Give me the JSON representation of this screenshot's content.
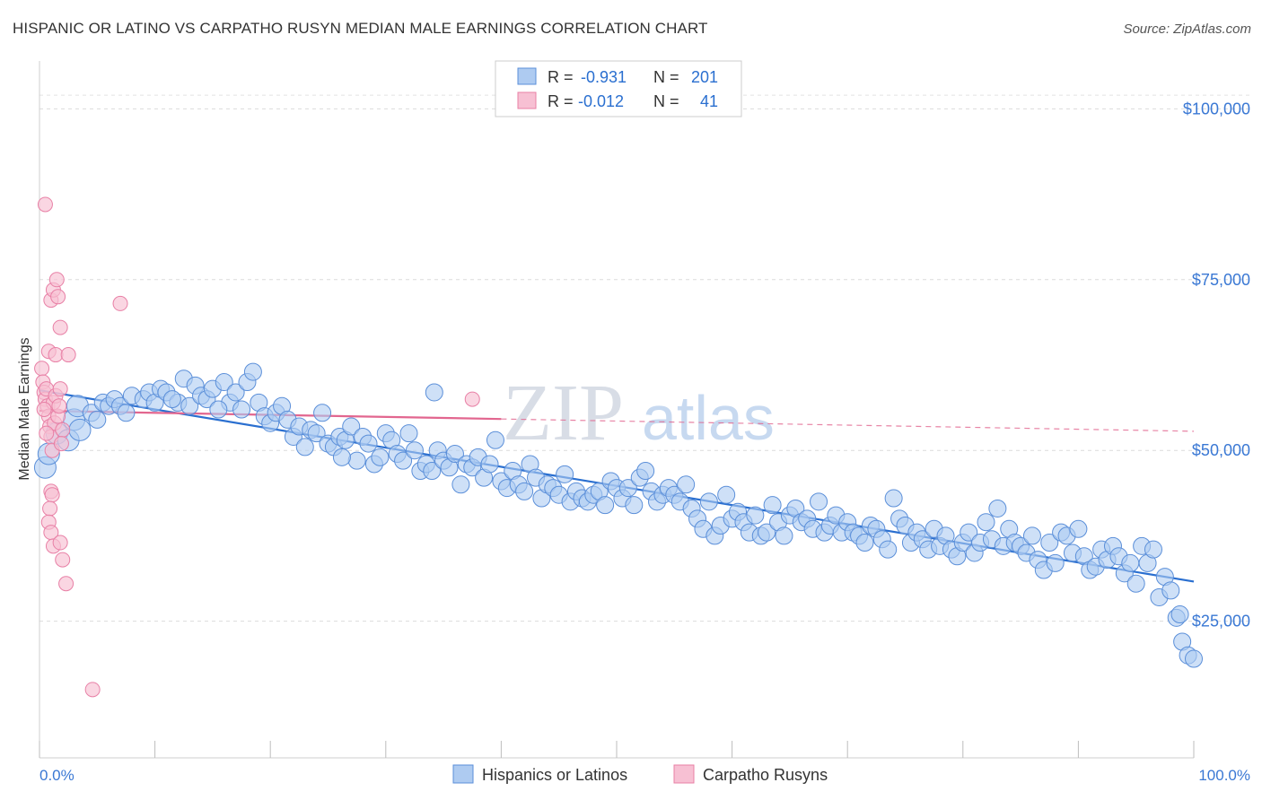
{
  "header": {
    "title": "HISPANIC OR LATINO VS CARPATHO RUSYN MEDIAN MALE EARNINGS CORRELATION CHART",
    "source": "Source: ZipAtlas.com"
  },
  "watermark": {
    "zip": "ZIP",
    "atlas": "atlas"
  },
  "colors": {
    "blue": "#5b8fd9",
    "blue_fill": "#aecbf1",
    "blue_line": "#2a6fd0",
    "pink": "#e880a6",
    "pink_fill": "#f7c0d3",
    "pink_line": "#e2668f",
    "axis_text": "#3a78d4"
  },
  "chart_data": {
    "type": "scatter",
    "title": "HISPANIC OR LATINO VS CARPATHO RUSYN MEDIAN MALE EARNINGS CORRELATION CHART",
    "xlabel": "",
    "ylabel": "Median Male Earnings",
    "xlim": [
      0,
      100
    ],
    "ylim": [
      5000,
      107000
    ],
    "x_tick_labels": [
      "0.0%",
      "100.0%"
    ],
    "y_ticks": [
      {
        "value": 25000,
        "label": "$25,000"
      },
      {
        "value": 50000,
        "label": "$50,000"
      },
      {
        "value": 75000,
        "label": "$75,000"
      },
      {
        "value": 100000,
        "label": "$100,000"
      }
    ],
    "legend": {
      "position": "top-center",
      "entries": [
        {
          "r_label": "R =",
          "r_value": "-0.931",
          "n_label": "N =",
          "n_value": "201"
        },
        {
          "r_label": "R =",
          "r_value": "-0.012",
          "n_label": "N =",
          "n_value": "41"
        }
      ]
    },
    "bottom_legend": [
      "Hispanics or Latinos",
      "Carpatho Rusyns"
    ],
    "series": [
      {
        "name": "Hispanics or Latinos",
        "r": -0.931,
        "n": 201,
        "trend": {
          "x": [
            0,
            100
          ],
          "y": [
            58800,
            30800
          ]
        },
        "points": [
          [
            0.5,
            47.5
          ],
          [
            0.8,
            49.5
          ],
          [
            1.5,
            52.5
          ],
          [
            2.5,
            51.5
          ],
          [
            3.0,
            54.5
          ],
          [
            3.3,
            56.5
          ],
          [
            4.5,
            55.5
          ],
          [
            5.0,
            54.5
          ],
          [
            5.5,
            57.0
          ],
          [
            6.0,
            56.5
          ],
          [
            6.5,
            57.5
          ],
          [
            7.0,
            56.5
          ],
          [
            8.0,
            58.0
          ],
          [
            9.0,
            57.5
          ],
          [
            9.5,
            58.5
          ],
          [
            10.0,
            57.0
          ],
          [
            10.5,
            59.0
          ],
          [
            11.0,
            58.5
          ],
          [
            12.0,
            57.0
          ],
          [
            12.5,
            60.5
          ],
          [
            13.0,
            56.5
          ],
          [
            13.5,
            59.5
          ],
          [
            14.0,
            58.0
          ],
          [
            14.5,
            57.5
          ],
          [
            15.0,
            59.0
          ],
          [
            16.0,
            60.0
          ],
          [
            16.5,
            57.0
          ],
          [
            17.0,
            58.5
          ],
          [
            17.5,
            56.0
          ],
          [
            18.0,
            60.0
          ],
          [
            18.5,
            61.5
          ],
          [
            19.0,
            57.0
          ],
          [
            19.5,
            55.0
          ],
          [
            20.0,
            54.0
          ],
          [
            20.5,
            55.5
          ],
          [
            21.0,
            56.5
          ],
          [
            21.5,
            54.5
          ],
          [
            22.0,
            52.0
          ],
          [
            22.5,
            53.5
          ],
          [
            23.0,
            50.5
          ],
          [
            23.5,
            53.0
          ],
          [
            24.0,
            52.5
          ],
          [
            24.5,
            55.5
          ],
          [
            25.0,
            51.0
          ],
          [
            25.5,
            50.5
          ],
          [
            26.0,
            52.0
          ],
          [
            26.5,
            51.5
          ],
          [
            27.0,
            53.5
          ],
          [
            27.5,
            48.5
          ],
          [
            28.0,
            52.0
          ],
          [
            28.5,
            51.0
          ],
          [
            29.0,
            48.0
          ],
          [
            29.5,
            49.0
          ],
          [
            30.0,
            52.5
          ],
          [
            30.5,
            51.5
          ],
          [
            31.0,
            49.5
          ],
          [
            31.5,
            48.5
          ],
          [
            32.0,
            52.5
          ],
          [
            32.5,
            50.0
          ],
          [
            33.0,
            47.0
          ],
          [
            33.5,
            48.0
          ],
          [
            34.0,
            47.0
          ],
          [
            34.5,
            50.0
          ],
          [
            35.0,
            48.5
          ],
          [
            35.5,
            47.5
          ],
          [
            36.0,
            49.5
          ],
          [
            36.5,
            45.0
          ],
          [
            37.0,
            48.0
          ],
          [
            37.5,
            47.5
          ],
          [
            38.0,
            49.0
          ],
          [
            38.5,
            46.0
          ],
          [
            39.0,
            48.0
          ],
          [
            39.5,
            51.5
          ],
          [
            40.0,
            45.5
          ],
          [
            40.5,
            44.5
          ],
          [
            41.0,
            47.0
          ],
          [
            41.5,
            45.0
          ],
          [
            42.0,
            44.0
          ],
          [
            42.5,
            48.0
          ],
          [
            43.0,
            46.0
          ],
          [
            43.5,
            43.0
          ],
          [
            44.0,
            45.0
          ],
          [
            44.5,
            44.5
          ],
          [
            45.0,
            43.5
          ],
          [
            45.5,
            46.5
          ],
          [
            46.0,
            42.5
          ],
          [
            46.5,
            44.0
          ],
          [
            47.0,
            43.0
          ],
          [
            47.5,
            42.5
          ],
          [
            48.0,
            43.5
          ],
          [
            48.5,
            44.0
          ],
          [
            49.0,
            42.0
          ],
          [
            49.5,
            45.5
          ],
          [
            50.0,
            44.5
          ],
          [
            50.5,
            43.0
          ],
          [
            51.0,
            44.5
          ],
          [
            51.5,
            42.0
          ],
          [
            52.0,
            46.0
          ],
          [
            52.5,
            47.0
          ],
          [
            53.0,
            44.0
          ],
          [
            53.5,
            42.5
          ],
          [
            54.0,
            43.5
          ],
          [
            54.5,
            44.5
          ],
          [
            55.0,
            43.5
          ],
          [
            55.5,
            42.5
          ],
          [
            56.0,
            45.0
          ],
          [
            56.5,
            41.5
          ],
          [
            57.0,
            40.0
          ],
          [
            57.5,
            38.5
          ],
          [
            58.0,
            42.5
          ],
          [
            58.5,
            37.5
          ],
          [
            59.0,
            39.0
          ],
          [
            59.5,
            43.5
          ],
          [
            60.0,
            40.0
          ],
          [
            60.5,
            41.0
          ],
          [
            61.0,
            39.5
          ],
          [
            61.5,
            38.0
          ],
          [
            62.0,
            40.5
          ],
          [
            62.5,
            37.5
          ],
          [
            63.0,
            38.0
          ],
          [
            63.5,
            42.0
          ],
          [
            64.0,
            39.5
          ],
          [
            64.5,
            37.5
          ],
          [
            65.0,
            40.5
          ],
          [
            65.5,
            41.5
          ],
          [
            66.0,
            39.5
          ],
          [
            66.5,
            40.0
          ],
          [
            67.0,
            38.5
          ],
          [
            67.5,
            42.5
          ],
          [
            68.0,
            38.0
          ],
          [
            68.5,
            39.0
          ],
          [
            69.0,
            40.5
          ],
          [
            69.5,
            38.0
          ],
          [
            70.0,
            39.5
          ],
          [
            70.5,
            38.0
          ],
          [
            71.0,
            37.5
          ],
          [
            71.5,
            36.5
          ],
          [
            72.0,
            39.0
          ],
          [
            72.5,
            38.5
          ],
          [
            73.0,
            37.0
          ],
          [
            73.5,
            35.5
          ],
          [
            74.0,
            43.0
          ],
          [
            74.5,
            40.0
          ],
          [
            75.0,
            39.0
          ],
          [
            75.5,
            36.5
          ],
          [
            76.0,
            38.0
          ],
          [
            76.5,
            37.0
          ],
          [
            77.0,
            35.5
          ],
          [
            77.5,
            38.5
          ],
          [
            78.0,
            36.0
          ],
          [
            78.5,
            37.5
          ],
          [
            79.0,
            35.5
          ],
          [
            79.5,
            34.5
          ],
          [
            80.0,
            36.5
          ],
          [
            80.5,
            38.0
          ],
          [
            81.0,
            35.0
          ],
          [
            81.5,
            36.5
          ],
          [
            82.0,
            39.5
          ],
          [
            82.5,
            37.0
          ],
          [
            83.0,
            41.5
          ],
          [
            83.5,
            36.0
          ],
          [
            84.0,
            38.5
          ],
          [
            84.5,
            36.5
          ],
          [
            85.0,
            36.0
          ],
          [
            85.5,
            35.0
          ],
          [
            86.0,
            37.5
          ],
          [
            86.5,
            34.0
          ],
          [
            87.0,
            32.5
          ],
          [
            87.5,
            36.5
          ],
          [
            88.0,
            33.5
          ],
          [
            88.5,
            38.0
          ],
          [
            89.0,
            37.5
          ],
          [
            89.5,
            35.0
          ],
          [
            90.0,
            38.5
          ],
          [
            90.5,
            34.5
          ],
          [
            91.0,
            32.5
          ],
          [
            91.5,
            33.0
          ],
          [
            92.0,
            35.5
          ],
          [
            92.5,
            34.0
          ],
          [
            93.0,
            36.0
          ],
          [
            93.5,
            34.5
          ],
          [
            94.0,
            32.0
          ],
          [
            94.5,
            33.5
          ],
          [
            95.0,
            30.5
          ],
          [
            95.5,
            36.0
          ],
          [
            96.0,
            33.5
          ],
          [
            96.5,
            35.5
          ],
          [
            97.0,
            28.5
          ],
          [
            97.5,
            31.5
          ],
          [
            98.0,
            29.5
          ],
          [
            98.5,
            25.5
          ],
          [
            99.0,
            22.0
          ],
          [
            99.5,
            20.0
          ],
          [
            100.0,
            19.5
          ],
          [
            3.5,
            53.0
          ],
          [
            7.5,
            55.5
          ],
          [
            11.5,
            57.5
          ],
          [
            15.5,
            56.0
          ],
          [
            26.2,
            49.0
          ],
          [
            34.2,
            58.5
          ],
          [
            98.8,
            26.0
          ]
        ]
      },
      {
        "name": "Carpatho Rusyns",
        "r": -0.012,
        "n": 41,
        "trend": {
          "x": [
            0,
            40
          ],
          "y": [
            55800,
            54600
          ],
          "dashed_to": {
            "x": 100,
            "y": 52800
          }
        },
        "points": [
          [
            0.2,
            62.0
          ],
          [
            0.3,
            60.0
          ],
          [
            0.4,
            58.5
          ],
          [
            0.5,
            57.5
          ],
          [
            0.6,
            59.0
          ],
          [
            0.7,
            56.5
          ],
          [
            0.8,
            55.0
          ],
          [
            0.9,
            53.5
          ],
          [
            1.0,
            52.0
          ],
          [
            1.1,
            50.0
          ],
          [
            1.2,
            57.0
          ],
          [
            1.3,
            54.0
          ],
          [
            1.4,
            58.0
          ],
          [
            0.8,
            64.5
          ],
          [
            1.0,
            72.0
          ],
          [
            1.2,
            73.5
          ],
          [
            1.5,
            75.0
          ],
          [
            1.6,
            72.5
          ],
          [
            1.8,
            68.0
          ],
          [
            1.4,
            64.0
          ],
          [
            0.5,
            86.0
          ],
          [
            2.5,
            64.0
          ],
          [
            1.8,
            59.0
          ],
          [
            1.6,
            55.0
          ],
          [
            1.0,
            44.0
          ],
          [
            1.1,
            43.5
          ],
          [
            0.9,
            41.5
          ],
          [
            0.8,
            39.5
          ],
          [
            1.0,
            38.0
          ],
          [
            1.2,
            36.0
          ],
          [
            1.8,
            36.5
          ],
          [
            2.0,
            34.0
          ],
          [
            2.3,
            30.5
          ],
          [
            1.7,
            56.5
          ],
          [
            2.0,
            53.0
          ],
          [
            0.6,
            52.5
          ],
          [
            7.0,
            71.5
          ],
          [
            37.5,
            57.5
          ],
          [
            4.6,
            15.0
          ],
          [
            1.9,
            51.0
          ],
          [
            0.4,
            56.0
          ]
        ]
      }
    ]
  }
}
